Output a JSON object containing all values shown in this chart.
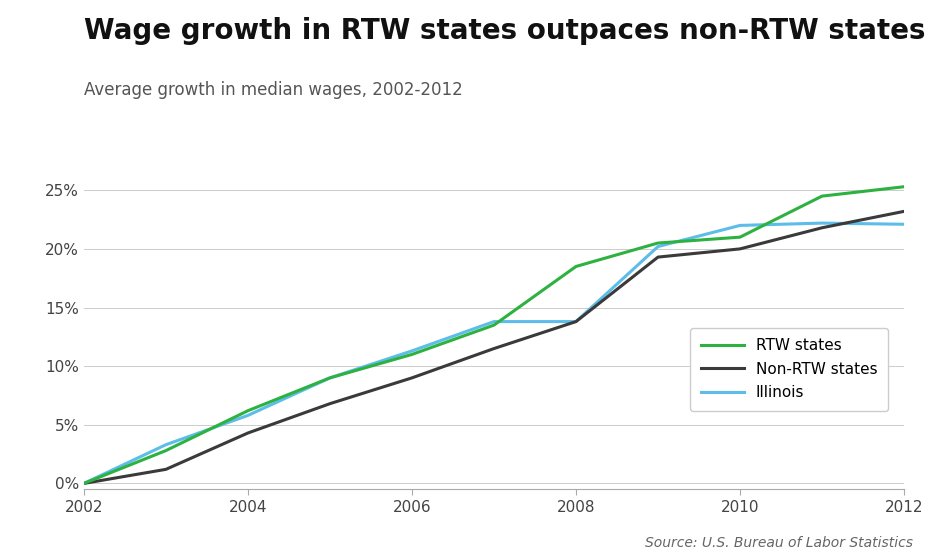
{
  "title": "Wage growth in RTW states outpaces non-RTW states",
  "subtitle": "Average growth in median wages, 2002-2012",
  "source": "Source: U.S. Bureau of Labor Statistics",
  "years": [
    2002,
    2003,
    2004,
    2005,
    2006,
    2007,
    2008,
    2009,
    2010,
    2011,
    2012
  ],
  "rtw": [
    0.0,
    0.028,
    0.062,
    0.09,
    0.11,
    0.135,
    0.185,
    0.205,
    0.21,
    0.245,
    0.253
  ],
  "non_rtw": [
    0.0,
    0.012,
    0.043,
    0.068,
    0.09,
    0.115,
    0.138,
    0.193,
    0.2,
    0.218,
    0.232
  ],
  "illinois": [
    0.0,
    0.033,
    0.058,
    0.09,
    0.113,
    0.138,
    0.138,
    0.202,
    0.22,
    0.222,
    0.221
  ],
  "rtw_color": "#2db140",
  "non_rtw_color": "#3a3a3a",
  "illinois_color": "#5bbde8",
  "background_color": "#ffffff",
  "ylim": [
    -0.005,
    0.27
  ],
  "yticks": [
    0.0,
    0.05,
    0.1,
    0.15,
    0.2,
    0.25
  ],
  "xticks": [
    2002,
    2004,
    2006,
    2008,
    2010,
    2012
  ],
  "legend_labels": [
    "RTW states",
    "Non-RTW states",
    "Illinois"
  ],
  "line_width": 2.2,
  "title_fontsize": 20,
  "subtitle_fontsize": 12,
  "tick_fontsize": 11,
  "source_fontsize": 10
}
